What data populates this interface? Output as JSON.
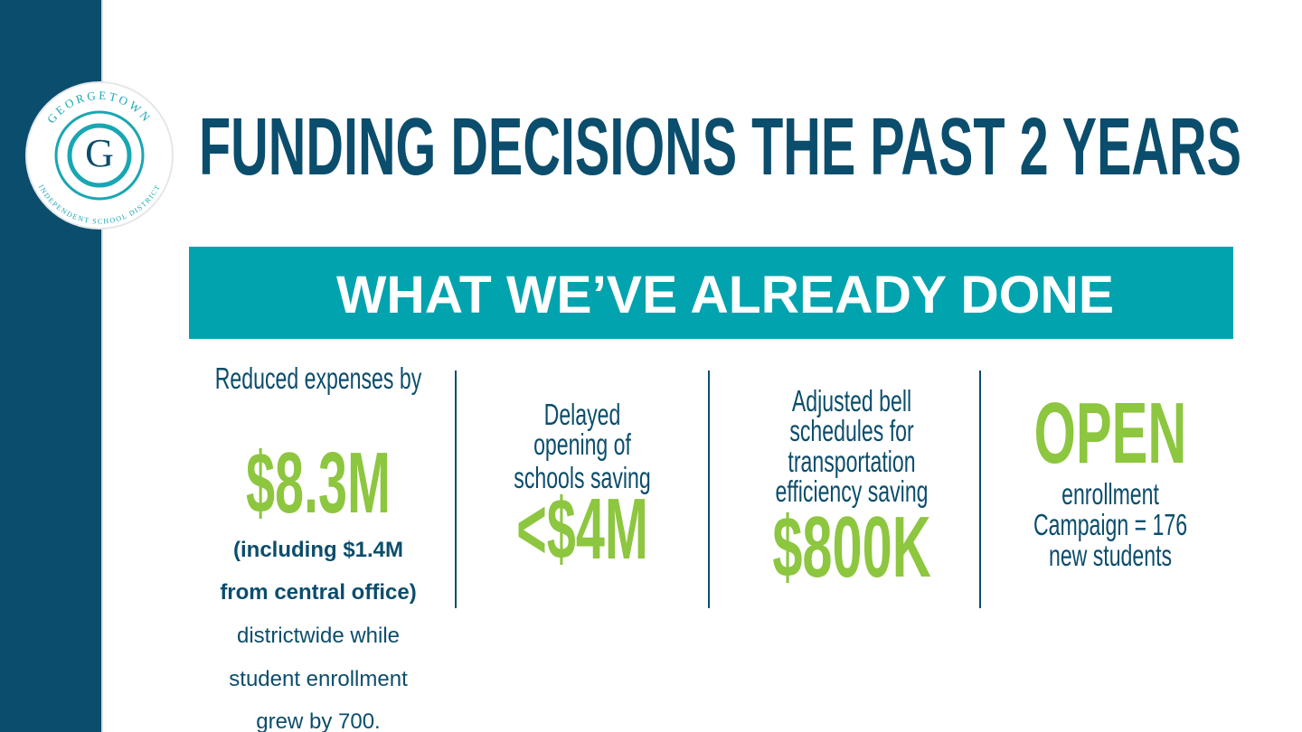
{
  "header": {
    "title": "FUNDING DECISIONS THE PAST 2 YEARS",
    "logo": {
      "arc_top": "GEORGETOWN",
      "letter": "G",
      "arc_bottom": "INDEPENDENT SCHOOL DISTRICT"
    }
  },
  "banner": "WHAT WE’VE ALREADY DONE",
  "columns": [
    {
      "intro": [
        "Reduced expenses by"
      ],
      "figure": "$8.3M",
      "note": [
        "(including $1.4M",
        "from central office)"
      ],
      "detail": [
        "districtwide while",
        "student enrollment",
        "grew by 700."
      ]
    },
    {
      "intro": [
        "Delayed",
        "opening of",
        "schools saving"
      ],
      "figure": "<$4M"
    },
    {
      "intro": [
        "Adjusted bell",
        "schedules for",
        "transportation",
        "efficiency saving"
      ],
      "figure": "$800K"
    },
    {
      "figure": "OPEN",
      "detail": [
        "enrollment",
        "Campaign = 176",
        "new students"
      ]
    }
  ]
}
